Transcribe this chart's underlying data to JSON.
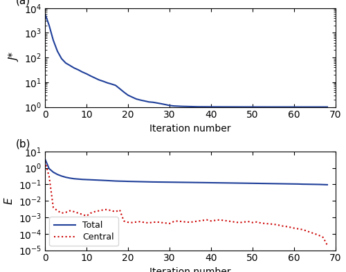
{
  "title_a": "(a)",
  "title_b": "(b)",
  "xlabel": "Iteration number",
  "ylabel_a": "J*",
  "ylabel_b": "E",
  "xlim": [
    0,
    70
  ],
  "ylim_a": [
    1.0,
    10000.0
  ],
  "ylim_b": [
    1e-05,
    10.0
  ],
  "blue_color": "#1f3f99",
  "red_color": "#cc0000",
  "legend_total": "Total",
  "legend_central": "Central",
  "panel_a_x": [
    0,
    1,
    2,
    3,
    4,
    5,
    6,
    7,
    8,
    9,
    10,
    11,
    12,
    13,
    14,
    15,
    16,
    17,
    18,
    19,
    20,
    21,
    22,
    23,
    24,
    25,
    26,
    27,
    28,
    29,
    30,
    31,
    32,
    33,
    34,
    35,
    36,
    37,
    38,
    39,
    40,
    41,
    42,
    43,
    44,
    45,
    46,
    47,
    48,
    49,
    50,
    51,
    52,
    53,
    54,
    55,
    56,
    57,
    58,
    59,
    60,
    61,
    62,
    63,
    64,
    65,
    66,
    67,
    68
  ],
  "panel_a_y": [
    6000,
    2000,
    500,
    180,
    90,
    60,
    48,
    38,
    32,
    26,
    22,
    18,
    15,
    12.5,
    11,
    9.5,
    8.5,
    7.5,
    5.5,
    4.0,
    3.0,
    2.5,
    2.1,
    1.9,
    1.75,
    1.6,
    1.55,
    1.45,
    1.35,
    1.25,
    1.15,
    1.1,
    1.08,
    1.06,
    1.05,
    1.04,
    1.03,
    1.02,
    1.02,
    1.018,
    1.015,
    1.013,
    1.012,
    1.011,
    1.01,
    1.009,
    1.008,
    1.007,
    1.006,
    1.006,
    1.005,
    1.005,
    1.004,
    1.004,
    1.003,
    1.003,
    1.003,
    1.002,
    1.002,
    1.002,
    1.002,
    1.001,
    1.001,
    1.001,
    1.001,
    1.001,
    1.001,
    1.001,
    1.001
  ],
  "panel_b_total_x": [
    0,
    1,
    2,
    3,
    4,
    5,
    6,
    7,
    8,
    9,
    10,
    11,
    12,
    13,
    14,
    15,
    16,
    17,
    18,
    19,
    20,
    21,
    22,
    23,
    24,
    25,
    26,
    27,
    28,
    29,
    30,
    31,
    32,
    33,
    34,
    35,
    36,
    37,
    38,
    39,
    40,
    41,
    42,
    43,
    44,
    45,
    46,
    47,
    48,
    49,
    50,
    51,
    52,
    53,
    54,
    55,
    56,
    57,
    58,
    59,
    60,
    61,
    62,
    63,
    64,
    65,
    66,
    67,
    68
  ],
  "panel_b_total_y": [
    3.5,
    0.9,
    0.55,
    0.4,
    0.32,
    0.27,
    0.24,
    0.22,
    0.21,
    0.2,
    0.195,
    0.19,
    0.185,
    0.18,
    0.175,
    0.17,
    0.165,
    0.16,
    0.157,
    0.155,
    0.152,
    0.15,
    0.148,
    0.146,
    0.144,
    0.142,
    0.14,
    0.139,
    0.138,
    0.137,
    0.136,
    0.135,
    0.134,
    0.133,
    0.132,
    0.131,
    0.13,
    0.129,
    0.128,
    0.127,
    0.126,
    0.125,
    0.124,
    0.123,
    0.122,
    0.121,
    0.12,
    0.119,
    0.118,
    0.117,
    0.116,
    0.115,
    0.114,
    0.113,
    0.112,
    0.111,
    0.11,
    0.109,
    0.108,
    0.107,
    0.106,
    0.105,
    0.103,
    0.102,
    0.101,
    0.1,
    0.099,
    0.097,
    0.095
  ],
  "panel_b_central_x": [
    0,
    1,
    2,
    3,
    4,
    5,
    6,
    7,
    8,
    9,
    10,
    11,
    12,
    13,
    14,
    15,
    16,
    17,
    18,
    19,
    20,
    21,
    22,
    23,
    24,
    25,
    26,
    27,
    28,
    29,
    30,
    31,
    32,
    33,
    34,
    35,
    36,
    37,
    38,
    39,
    40,
    41,
    42,
    43,
    44,
    45,
    46,
    47,
    48,
    49,
    50,
    51,
    52,
    53,
    54,
    55,
    56,
    57,
    58,
    59,
    60,
    61,
    62,
    63,
    64,
    65,
    66,
    67,
    68
  ],
  "panel_b_central_y": [
    2.5,
    0.3,
    0.004,
    0.0025,
    0.0018,
    0.002,
    0.0025,
    0.0022,
    0.0018,
    0.0015,
    0.0012,
    0.0018,
    0.0022,
    0.0025,
    0.0028,
    0.003,
    0.0025,
    0.0022,
    0.0028,
    0.0006,
    0.0005,
    0.00048,
    0.00052,
    0.00055,
    0.00048,
    0.00046,
    0.0005,
    0.00052,
    0.00048,
    0.00045,
    0.00042,
    0.00055,
    0.0006,
    0.00055,
    0.00052,
    0.0005,
    0.00055,
    0.0006,
    0.00065,
    0.0007,
    0.0006,
    0.00065,
    0.0007,
    0.00065,
    0.0006,
    0.00055,
    0.0005,
    0.00048,
    0.00052,
    0.00055,
    0.00048,
    0.00052,
    0.00045,
    0.00042,
    0.0004,
    0.00038,
    0.00035,
    0.0003,
    0.00028,
    0.00025,
    0.00022,
    0.0002,
    0.00018,
    0.00015,
    0.00012,
    0.0001,
    8e-05,
    6e-05,
    2e-05
  ]
}
